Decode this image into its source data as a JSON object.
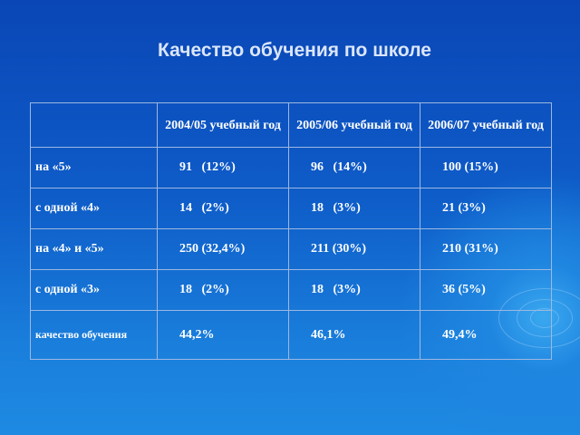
{
  "title": "Качество обучения по школе",
  "table": {
    "header": [
      "2004/05 учебный год",
      "2005/06 учебный год",
      "2006/07 учебный год"
    ],
    "rows": [
      [
        "на «5»",
        "91   (12%)",
        "96   (14%)",
        "100 (15%)"
      ],
      [
        "с одной «4»",
        "14   (2%)",
        "18   (3%)",
        "21 (3%)"
      ],
      [
        "на «4» и «5»",
        "250 (32,4%)",
        "211 (30%)",
        "210 (31%)"
      ],
      [
        "с одной «3»",
        "18   (2%)",
        "18   (3%)",
        "36 (5%)"
      ],
      [
        "качество обучения",
        "44,2%",
        "46,1%",
        "49,4%"
      ]
    ]
  }
}
